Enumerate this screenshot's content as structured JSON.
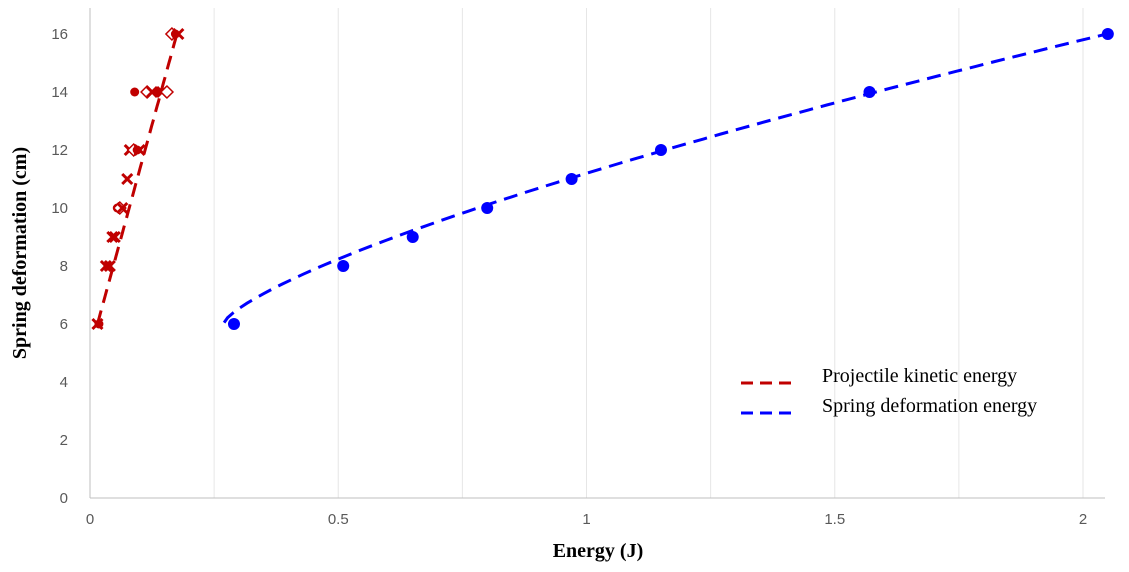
{
  "chart_data": {
    "type": "scatter",
    "title": "",
    "xlabel": "Energy (J)",
    "ylabel": "Spring deformation (cm)",
    "xlim": [
      0,
      2.05
    ],
    "ylim": [
      0,
      17
    ],
    "x_ticks": [
      "0",
      "0.5",
      "1",
      "1.5",
      "2"
    ],
    "y_ticks": [
      "0",
      "2",
      "4",
      "6",
      "8",
      "10",
      "12",
      "14",
      "16"
    ],
    "grid": "vertical",
    "legend_position": "bottom-right",
    "series": [
      {
        "name": "Projectile kinetic energy",
        "color": "#C00000",
        "line": "dashed",
        "trend": {
          "x": [
            0.015,
            0.175
          ],
          "y": [
            6,
            16
          ]
        },
        "points": [
          {
            "x": 0.015,
            "y": 6,
            "marker": "x"
          },
          {
            "x": 0.018,
            "y": 6,
            "marker": "circle"
          },
          {
            "x": 0.032,
            "y": 8,
            "marker": "x"
          },
          {
            "x": 0.036,
            "y": 8,
            "marker": "circle"
          },
          {
            "x": 0.04,
            "y": 8,
            "marker": "x"
          },
          {
            "x": 0.045,
            "y": 9,
            "marker": "x"
          },
          {
            "x": 0.05,
            "y": 9,
            "marker": "x"
          },
          {
            "x": 0.055,
            "y": 10,
            "marker": "circle"
          },
          {
            "x": 0.06,
            "y": 10,
            "marker": "diamond"
          },
          {
            "x": 0.065,
            "y": 10,
            "marker": "x"
          },
          {
            "x": 0.075,
            "y": 11,
            "marker": "x"
          },
          {
            "x": 0.08,
            "y": 12,
            "marker": "x"
          },
          {
            "x": 0.088,
            "y": 12,
            "marker": "diamond"
          },
          {
            "x": 0.095,
            "y": 12,
            "marker": "circle"
          },
          {
            "x": 0.1,
            "y": 12,
            "marker": "x"
          },
          {
            "x": 0.09,
            "y": 14,
            "marker": "circle"
          },
          {
            "x": 0.115,
            "y": 14,
            "marker": "diamond"
          },
          {
            "x": 0.125,
            "y": 14,
            "marker": "x"
          },
          {
            "x": 0.135,
            "y": 14,
            "marker": "circle"
          },
          {
            "x": 0.145,
            "y": 14,
            "marker": "x"
          },
          {
            "x": 0.155,
            "y": 14,
            "marker": "diamond"
          },
          {
            "x": 0.165,
            "y": 16,
            "marker": "diamond"
          },
          {
            "x": 0.172,
            "y": 16,
            "marker": "circle"
          },
          {
            "x": 0.178,
            "y": 16,
            "marker": "x"
          }
        ]
      },
      {
        "name": "Spring deformation energy",
        "color": "#0000FF",
        "line": "dashed",
        "trend": {
          "x": [
            0.27,
            2.06
          ],
          "y": [
            6.05,
            16.05
          ]
        },
        "points": [
          {
            "x": 0.29,
            "y": 6,
            "marker": "circle"
          },
          {
            "x": 0.51,
            "y": 8,
            "marker": "circle"
          },
          {
            "x": 0.65,
            "y": 9,
            "marker": "circle"
          },
          {
            "x": 0.8,
            "y": 10,
            "marker": "circle"
          },
          {
            "x": 0.97,
            "y": 11,
            "marker": "circle"
          },
          {
            "x": 1.15,
            "y": 12,
            "marker": "circle"
          },
          {
            "x": 1.57,
            "y": 14,
            "marker": "circle"
          },
          {
            "x": 2.05,
            "y": 16,
            "marker": "circle"
          }
        ]
      }
    ]
  }
}
